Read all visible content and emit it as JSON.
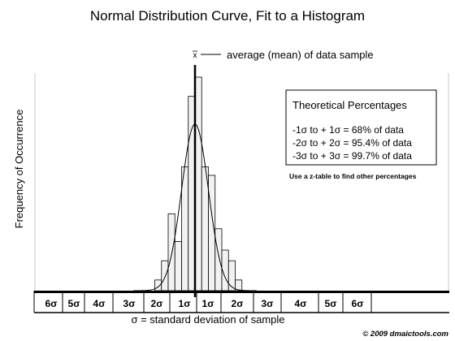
{
  "title": "Normal Distribution Curve, Fit to a Histogram",
  "ylabel": "Frequency of Occurrence",
  "xlabel": "σ = standard deviation of sample",
  "mean_symbol": "x",
  "mean_label": "average (mean) of data sample",
  "box": {
    "title": "Theoretical Percentages",
    "lines": [
      "-1σ to + 1σ = 68% of data",
      "-2σ to + 2σ = 95.4% of data",
      "-3σ to + 3σ = 99.7% of data"
    ]
  },
  "note": "Use a z-table to find other percentages",
  "copyright": "© 2009 dmaictools.com",
  "chart_data": {
    "type": "bar",
    "title": "Normal Distribution Curve, Fit to a Histogram",
    "xlabel": "σ = standard deviation of sample",
    "ylabel": "Frequency of Occurrence",
    "x_tick_labels": [
      "6σ",
      "5σ",
      "4σ",
      "3σ",
      "2σ",
      "1σ",
      "1σ",
      "2σ",
      "3σ",
      "4σ",
      "5σ",
      "6σ"
    ],
    "x_range": [
      -6,
      6
    ],
    "y_range": [
      0,
      100
    ],
    "grid": false,
    "bin_width": 0.5,
    "bins": [
      {
        "x0": -3.0,
        "x1": -2.5,
        "value": 5
      },
      {
        "x0": -2.5,
        "x1": -2.0,
        "value": 14
      },
      {
        "x0": -2.0,
        "x1": -1.5,
        "value": 36
      },
      {
        "x0": -1.5,
        "x1": -1.0,
        "value": 23
      },
      {
        "x0": -1.0,
        "x1": -0.5,
        "value": 58
      },
      {
        "x0": -0.5,
        "x1": 0.0,
        "value": 91
      },
      {
        "x0": 0.0,
        "x1": 0.5,
        "value": 100
      },
      {
        "x0": 0.5,
        "x1": 1.0,
        "value": 58
      },
      {
        "x0": 1.0,
        "x1": 1.5,
        "value": 54
      },
      {
        "x0": 1.5,
        "x1": 2.0,
        "value": 29
      },
      {
        "x0": 2.0,
        "x1": 2.5,
        "value": 19
      },
      {
        "x0": 2.5,
        "x1": 3.0,
        "value": 14
      },
      {
        "x0": 3.0,
        "x1": 3.5,
        "value": 5
      }
    ],
    "curve": {
      "mean": 0,
      "sd": 1,
      "peak": 78
    },
    "mean_line": 0
  }
}
